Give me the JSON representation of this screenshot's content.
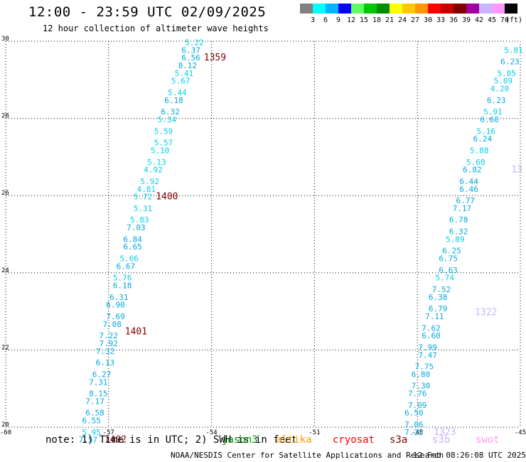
{
  "header": {
    "title": "12:00 - 23:59 UTC 02/09/2025",
    "subtitle": "12 hour collection of altimeter wave heights"
  },
  "legend": {
    "unit": "(ft)",
    "items": [
      {
        "label": "3",
        "color": "#808080"
      },
      {
        "label": "6",
        "color": "#00ffff"
      },
      {
        "label": "9",
        "color": "#00b4ff"
      },
      {
        "label": "12",
        "color": "#0000ff"
      },
      {
        "label": "15",
        "color": "#60ff60"
      },
      {
        "label": "18",
        "color": "#00c800"
      },
      {
        "label": "21",
        "color": "#008c00"
      },
      {
        "label": "24",
        "color": "#ffff00"
      },
      {
        "label": "27",
        "color": "#ffc800"
      },
      {
        "label": "30",
        "color": "#ff9600"
      },
      {
        "label": "33",
        "color": "#ff0000"
      },
      {
        "label": "36",
        "color": "#c80000"
      },
      {
        "label": "39",
        "color": "#800000"
      },
      {
        "label": "42",
        "color": "#a000a0"
      },
      {
        "label": "45",
        "color": "#c8b4ff"
      },
      {
        "label": "70",
        "color": "#ff96ff"
      },
      {
        "label": "",
        "color": "#000000"
      }
    ]
  },
  "map": {
    "lon_range": [
      -60,
      -45
    ],
    "lat_range": [
      20,
      30
    ],
    "lon_ticks": [
      "-60",
      "-57",
      "-54",
      "-51",
      "-48",
      "-45"
    ],
    "lat_ticks": [
      "20",
      "22",
      "24",
      "26",
      "28",
      "30"
    ],
    "left_track": [
      {
        "lon": -54.5,
        "lat": 29.9,
        "swh": "5.22"
      },
      {
        "lon": -54.6,
        "lat": 29.7,
        "swh": "6.37"
      },
      {
        "lon": -54.6,
        "lat": 29.5,
        "swh": "6.56"
      },
      {
        "lon": -54.7,
        "lat": 29.3,
        "swh": "8.12"
      },
      {
        "lon": -54.8,
        "lat": 29.1,
        "swh": "5.41"
      },
      {
        "lon": -54.9,
        "lat": 28.9,
        "swh": "5.67"
      },
      {
        "lon": -55.0,
        "lat": 28.6,
        "swh": "5.44"
      },
      {
        "lon": -55.1,
        "lat": 28.4,
        "swh": "6.18"
      },
      {
        "lon": -55.2,
        "lat": 28.1,
        "swh": "6.32"
      },
      {
        "lon": -55.3,
        "lat": 27.9,
        "swh": "5.34"
      },
      {
        "lon": -55.4,
        "lat": 27.6,
        "swh": "5.59"
      },
      {
        "lon": -55.4,
        "lat": 27.3,
        "swh": "5.57"
      },
      {
        "lon": -55.5,
        "lat": 27.1,
        "swh": "5.10"
      },
      {
        "lon": -55.6,
        "lat": 26.8,
        "swh": "5.13"
      },
      {
        "lon": -55.7,
        "lat": 26.6,
        "swh": "4.92"
      },
      {
        "lon": -55.8,
        "lat": 26.3,
        "swh": "5.92"
      },
      {
        "lon": -55.9,
        "lat": 26.1,
        "swh": "4.81"
      },
      {
        "lon": -56.0,
        "lat": 25.9,
        "swh": "5.72"
      },
      {
        "lon": -56.0,
        "lat": 25.6,
        "swh": "5.31"
      },
      {
        "lon": -56.1,
        "lat": 25.3,
        "swh": "5.83"
      },
      {
        "lon": -56.2,
        "lat": 25.1,
        "swh": "7.03"
      },
      {
        "lon": -56.3,
        "lat": 24.8,
        "swh": "6.84"
      },
      {
        "lon": -56.3,
        "lat": 24.6,
        "swh": "6.65"
      },
      {
        "lon": -56.4,
        "lat": 24.3,
        "swh": "5.66"
      },
      {
        "lon": -56.5,
        "lat": 24.1,
        "swh": "6.67"
      },
      {
        "lon": -56.6,
        "lat": 23.8,
        "swh": "5.76"
      },
      {
        "lon": -56.6,
        "lat": 23.6,
        "swh": "6.18"
      },
      {
        "lon": -56.7,
        "lat": 23.3,
        "swh": "6.31"
      },
      {
        "lon": -56.8,
        "lat": 23.1,
        "swh": "6.90"
      },
      {
        "lon": -56.8,
        "lat": 22.8,
        "swh": "7.69"
      },
      {
        "lon": -56.9,
        "lat": 22.6,
        "swh": "7.08"
      },
      {
        "lon": -57.0,
        "lat": 22.3,
        "swh": "7.22"
      },
      {
        "lon": -57.0,
        "lat": 22.1,
        "swh": "7.92"
      },
      {
        "lon": -57.1,
        "lat": 21.9,
        "swh": "7.32"
      },
      {
        "lon": -57.1,
        "lat": 21.6,
        "swh": "6.13"
      },
      {
        "lon": -57.2,
        "lat": 21.3,
        "swh": "6.27"
      },
      {
        "lon": -57.3,
        "lat": 21.1,
        "swh": "7.31"
      },
      {
        "lon": -57.3,
        "lat": 20.8,
        "swh": "8.15"
      },
      {
        "lon": -57.4,
        "lat": 20.6,
        "swh": "7.17"
      },
      {
        "lon": -57.4,
        "lat": 20.3,
        "swh": "6.58"
      },
      {
        "lon": -57.5,
        "lat": 20.1,
        "swh": "6.55"
      },
      {
        "lon": -57.5,
        "lat": 19.8,
        "swh": "5.95"
      },
      {
        "lon": -57.6,
        "lat": 19.6,
        "swh": "7.57"
      }
    ],
    "right_track": [
      {
        "lon": -45.2,
        "lat": 29.7,
        "swh": "5.81"
      },
      {
        "lon": -45.3,
        "lat": 29.4,
        "swh": "6.23"
      },
      {
        "lon": -45.4,
        "lat": 29.1,
        "swh": "5.85"
      },
      {
        "lon": -45.5,
        "lat": 28.9,
        "swh": "5.09"
      },
      {
        "lon": -45.6,
        "lat": 28.7,
        "swh": "4.20"
      },
      {
        "lon": -45.7,
        "lat": 28.4,
        "swh": "6.23"
      },
      {
        "lon": -45.8,
        "lat": 28.1,
        "swh": "5.91"
      },
      {
        "lon": -45.9,
        "lat": 27.9,
        "swh": "6.60"
      },
      {
        "lon": -46.0,
        "lat": 27.6,
        "swh": "5.16"
      },
      {
        "lon": -46.1,
        "lat": 27.4,
        "swh": "6.24"
      },
      {
        "lon": -46.2,
        "lat": 27.1,
        "swh": "5.88"
      },
      {
        "lon": -46.3,
        "lat": 26.8,
        "swh": "5.68"
      },
      {
        "lon": -46.4,
        "lat": 26.6,
        "swh": "6.82"
      },
      {
        "lon": -46.5,
        "lat": 26.3,
        "swh": "6.44"
      },
      {
        "lon": -46.5,
        "lat": 26.1,
        "swh": "6.46"
      },
      {
        "lon": -46.6,
        "lat": 25.8,
        "swh": "6.77"
      },
      {
        "lon": -46.7,
        "lat": 25.6,
        "swh": "7.17"
      },
      {
        "lon": -46.8,
        "lat": 25.3,
        "swh": "6.78"
      },
      {
        "lon": -46.8,
        "lat": 25.0,
        "swh": "6.32"
      },
      {
        "lon": -46.9,
        "lat": 24.8,
        "swh": "5.89"
      },
      {
        "lon": -47.0,
        "lat": 24.5,
        "swh": "6.25"
      },
      {
        "lon": -47.1,
        "lat": 24.3,
        "swh": "6.75"
      },
      {
        "lon": -47.1,
        "lat": 24.0,
        "swh": "6.63"
      },
      {
        "lon": -47.2,
        "lat": 23.8,
        "swh": "5.74"
      },
      {
        "lon": -47.3,
        "lat": 23.5,
        "swh": "7.52"
      },
      {
        "lon": -47.4,
        "lat": 23.3,
        "swh": "6.38"
      },
      {
        "lon": -47.4,
        "lat": 23.0,
        "swh": "6.79"
      },
      {
        "lon": -47.5,
        "lat": 22.8,
        "swh": "7.11"
      },
      {
        "lon": -47.6,
        "lat": 22.5,
        "swh": "7.62"
      },
      {
        "lon": -47.6,
        "lat": 22.3,
        "swh": "6.60"
      },
      {
        "lon": -47.7,
        "lat": 22.0,
        "swh": "7.99"
      },
      {
        "lon": -47.7,
        "lat": 21.8,
        "swh": "7.47"
      },
      {
        "lon": -47.8,
        "lat": 21.5,
        "swh": "7.75"
      },
      {
        "lon": -47.9,
        "lat": 21.3,
        "swh": "6.80"
      },
      {
        "lon": -47.9,
        "lat": 21.0,
        "swh": "7.30"
      },
      {
        "lon": -48.0,
        "lat": 20.8,
        "swh": "7.76"
      },
      {
        "lon": -48.0,
        "lat": 20.5,
        "swh": "7.09"
      },
      {
        "lon": -48.1,
        "lat": 20.3,
        "swh": "6.50"
      },
      {
        "lon": -48.1,
        "lat": 20.0,
        "swh": "7.06"
      },
      {
        "lon": -48.1,
        "lat": 19.8,
        "swh": "7.25"
      }
    ],
    "pass_labels": [
      {
        "text": "1359",
        "lon": -53.9,
        "lat": 29.5,
        "color": "#800000"
      },
      {
        "text": "1400",
        "lon": -55.3,
        "lat": 25.9,
        "color": "#800000"
      },
      {
        "text": "1401",
        "lon": -56.2,
        "lat": 22.4,
        "color": "#800000"
      },
      {
        "text": "1402",
        "lon": -56.8,
        "lat": 19.6,
        "color": "#800000"
      },
      {
        "text": "1322",
        "lon": -46.0,
        "lat": 22.9,
        "color": "#c8b4ff"
      },
      {
        "text": "1323",
        "lon": -47.2,
        "lat": 19.8,
        "color": "#c8b4ff"
      },
      {
        "text": "13",
        "lon": -45.1,
        "lat": 26.6,
        "color": "#c8b4ff"
      }
    ]
  },
  "footer": {
    "note": "note: 1) Time is in UTC; 2) SWH is in feet",
    "missions": [
      {
        "name": "jason3",
        "color": "#008c00"
      },
      {
        "name": "altika",
        "color": "#ff9600"
      },
      {
        "name": "cryosat",
        "color": "#ff0000"
      },
      {
        "name": "s3a",
        "color": "#800000"
      },
      {
        "name": "s3b",
        "color": "#c8b4ff"
      },
      {
        "name": "swot",
        "color": "#ff96ff"
      }
    ],
    "credit": "NOAA/NESDIS Center for Satellite Applications and Research",
    "timestamp": "12 Feb 08:26:08 UTC 2025"
  }
}
